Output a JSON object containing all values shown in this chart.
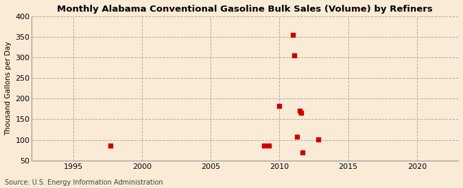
{
  "title": "Monthly Alabama Conventional Gasoline Bulk Sales (Volume) by Refiners",
  "ylabel": "Thousand Gallons per Day",
  "source": "Source: U.S. Energy Information Administration",
  "background_color": "#faebd7",
  "plot_bg_color": "#faebd7",
  "scatter_color": "#cc0000",
  "xlim": [
    1992,
    2023
  ],
  "ylim": [
    50,
    400
  ],
  "yticks": [
    50,
    100,
    150,
    200,
    250,
    300,
    350,
    400
  ],
  "xticks": [
    1995,
    2000,
    2005,
    2010,
    2015,
    2020
  ],
  "data_points": [
    [
      1997.7,
      86
    ],
    [
      2008.9,
      86
    ],
    [
      2009.25,
      86
    ],
    [
      2010.0,
      182
    ],
    [
      2011.0,
      355
    ],
    [
      2011.1,
      305
    ],
    [
      2011.3,
      108
    ],
    [
      2011.5,
      170
    ],
    [
      2011.6,
      165
    ],
    [
      2011.7,
      70
    ],
    [
      2012.8,
      101
    ]
  ]
}
